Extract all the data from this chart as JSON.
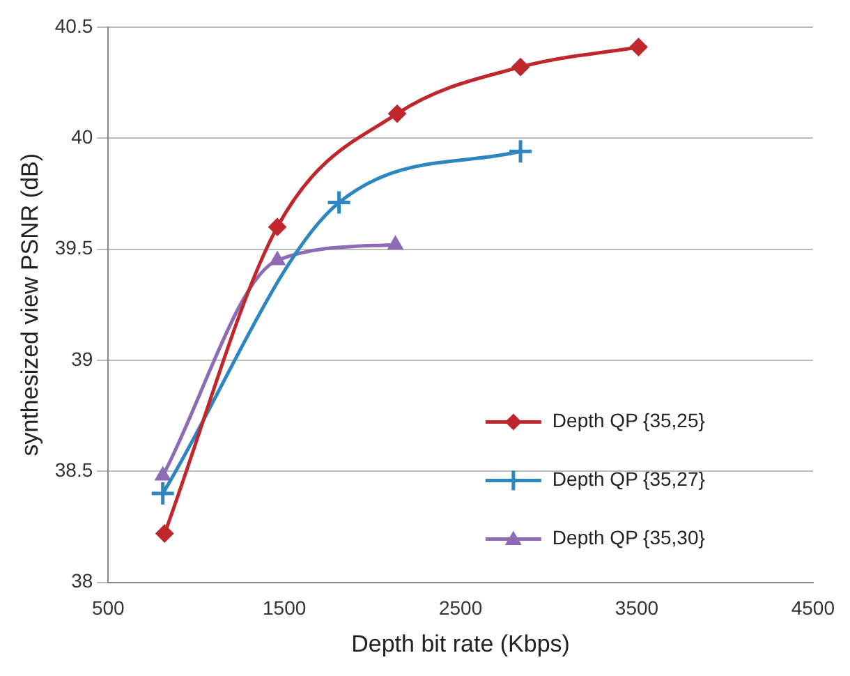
{
  "chart_data": {
    "type": "line",
    "xlabel": "Depth bit rate (Kbps)",
    "ylabel": "synthesized view PSNR (dB)",
    "xlim": [
      500,
      4500
    ],
    "xticks": [
      500,
      1500,
      2500,
      3500,
      4500
    ],
    "ylim": [
      38,
      40.5
    ],
    "yticks": [
      38,
      38.5,
      39,
      39.5,
      40,
      40.5
    ],
    "grid": "y",
    "legend": "bottom right",
    "series": [
      {
        "name": "Depth QP {35,25}",
        "color": "#c0272d",
        "marker": "diamond",
        "x": [
          820,
          1460,
          2140,
          2840,
          3510
        ],
        "values": [
          38.22,
          39.6,
          40.11,
          40.32,
          40.41
        ]
      },
      {
        "name": "Depth QP {35,27}",
        "color": "#2e86c1",
        "marker": "cross",
        "x": [
          810,
          1810,
          2840
        ],
        "values": [
          38.4,
          39.71,
          39.94
        ]
      },
      {
        "name": "Depth QP {35,30}",
        "color": "#8e6bb5",
        "marker": "triangle",
        "x": [
          810,
          1460,
          2130
        ],
        "values": [
          38.48,
          39.45,
          39.52
        ]
      }
    ]
  }
}
